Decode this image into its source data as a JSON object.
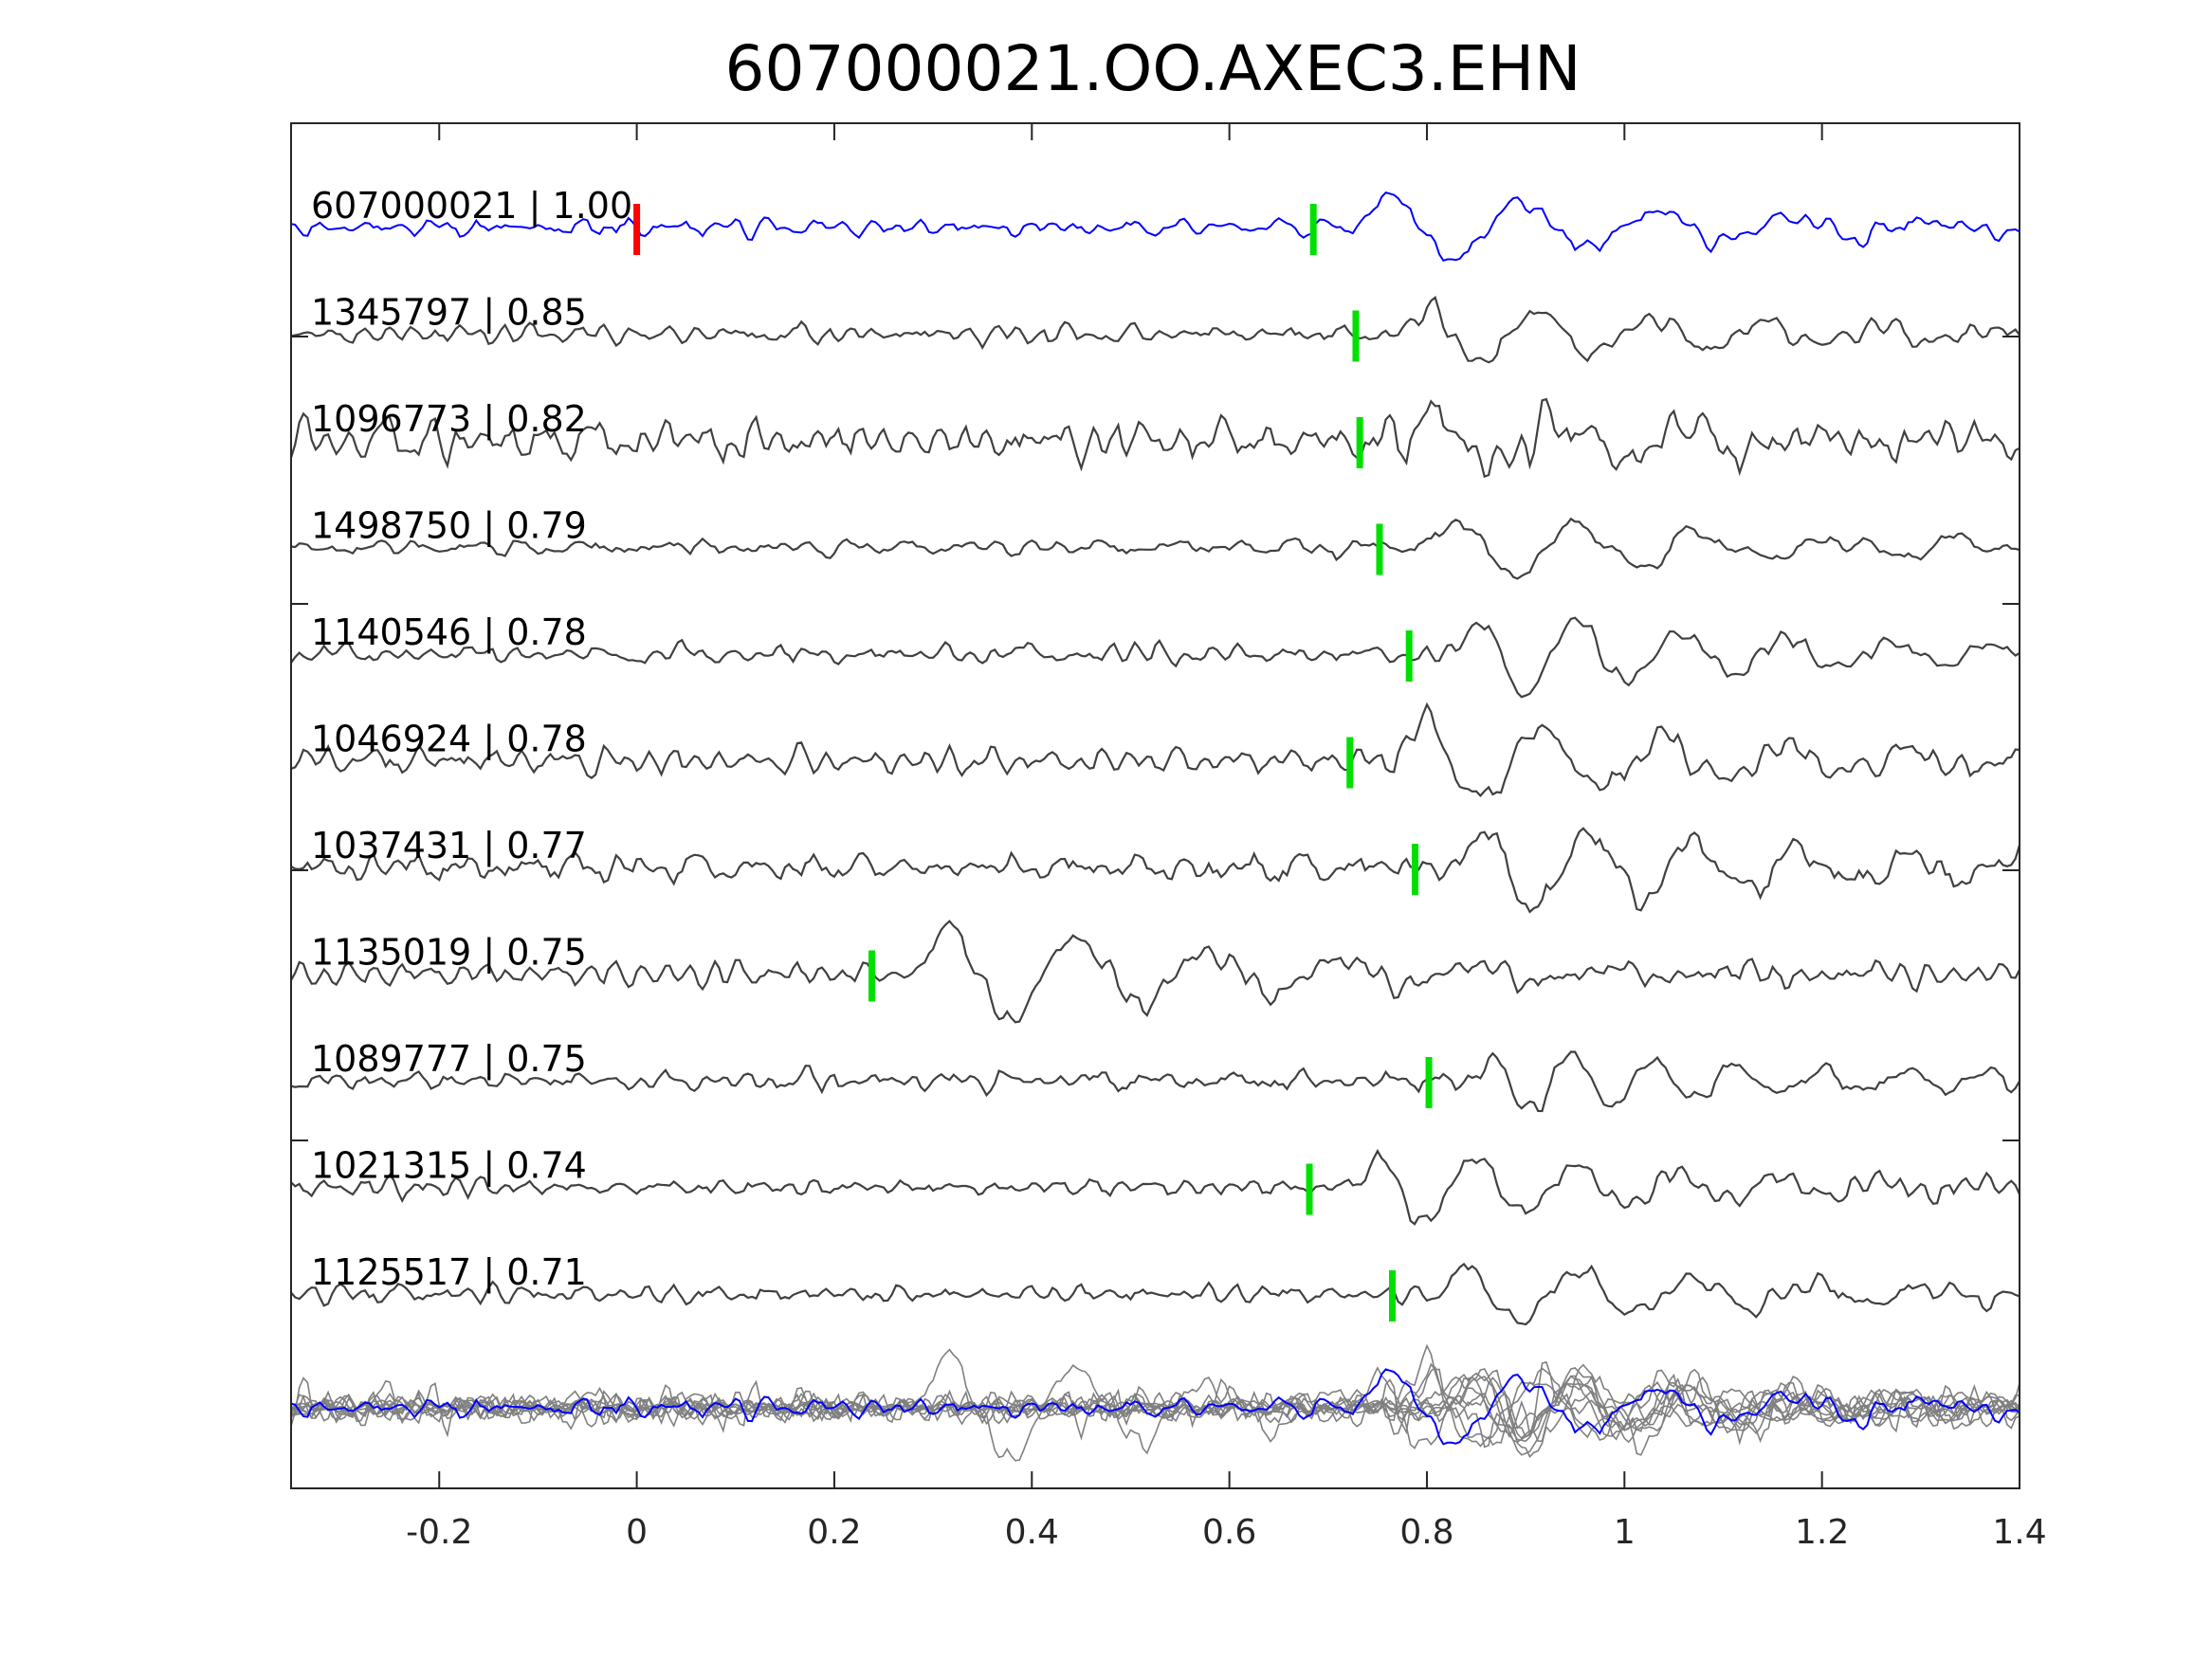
{
  "chart_data": {
    "type": "line",
    "title": "607000021.OO.AXEC3.EHN",
    "xlabel": "",
    "ylabel": "",
    "xlim": [
      -0.35,
      1.4
    ],
    "xticks": [
      "-0.2",
      "0",
      "0.2",
      "0.4",
      "0.6",
      "0.8",
      "1",
      "1.2",
      "1.4"
    ],
    "xtick_values": [
      -0.2,
      0,
      0.2,
      0.4,
      0.6,
      0.8,
      1,
      1.2,
      1.4
    ],
    "grid": false,
    "reference_pick": 0,
    "series": [
      {
        "name": "607000021",
        "cc": "1.00",
        "label": "607000021 | 1.00",
        "pick": 0.685,
        "color": "#0000ff"
      },
      {
        "name": "1345797",
        "cc": "0.85",
        "label": "1345797 | 0.85",
        "pick": 0.728,
        "color": "#404040"
      },
      {
        "name": "1096773",
        "cc": "0.82",
        "label": "1096773 | 0.82",
        "pick": 0.732,
        "color": "#404040"
      },
      {
        "name": "1498750",
        "cc": "0.79",
        "label": "1498750 | 0.79",
        "pick": 0.752,
        "color": "#404040"
      },
      {
        "name": "1140546",
        "cc": "0.78",
        "label": "1140546 | 0.78",
        "pick": 0.782,
        "color": "#404040"
      },
      {
        "name": "1046924",
        "cc": "0.78",
        "label": "1046924 | 0.78",
        "pick": 0.722,
        "color": "#404040"
      },
      {
        "name": "1037431",
        "cc": "0.77",
        "label": "1037431 | 0.77",
        "pick": 0.788,
        "color": "#404040"
      },
      {
        "name": "1135019",
        "cc": "0.75",
        "label": "1135019 | 0.75",
        "pick": 0.238,
        "color": "#404040"
      },
      {
        "name": "1089777",
        "cc": "0.75",
        "label": "1089777 | 0.75",
        "pick": 0.802,
        "color": "#404040"
      },
      {
        "name": "1021315",
        "cc": "0.74",
        "label": "1021315 | 0.74",
        "pick": 0.681,
        "color": "#404040"
      },
      {
        "name": "1125517",
        "cc": "0.71",
        "label": "1125517 | 0.71",
        "pick": 0.765,
        "color": "#404040"
      }
    ],
    "colors": {
      "template": "#0000ff",
      "trace": "#404040",
      "stack": "#808080",
      "pick": "#00e000",
      "ref_pick": "#ff0000"
    }
  }
}
